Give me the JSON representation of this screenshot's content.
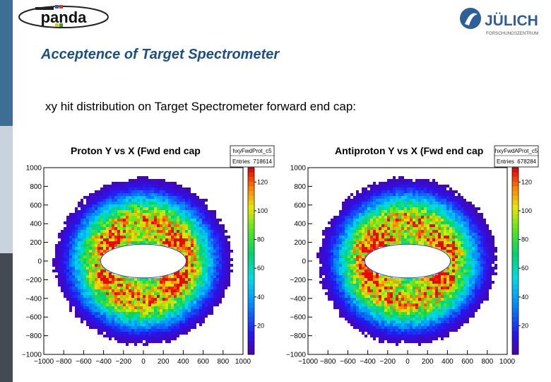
{
  "header": {
    "title": "Acceptence of Target Spectrometer",
    "subtitle": "xy hit distribution on Target Spectrometer forward end cap:",
    "logos": {
      "left": "panda",
      "right": "JÜLICH",
      "right_sub": "FORSCHUNGSZENTRUM"
    }
  },
  "colors": {
    "title": "#1d4f86",
    "sidebar_top": "#3f6e95",
    "sidebar_bottom": "#444a52"
  },
  "chart_data": [
    {
      "type": "heatmap",
      "title": "Proton Y vs X (Fwd end cap",
      "stat_name": "hxyFwdProt_c5",
      "entries_label": "Entries",
      "entries": "718614",
      "xlim": [
        -1000,
        1000
      ],
      "ylim": [
        -1000,
        1000
      ],
      "x_ticks": [
        "−1000",
        "−800",
        "−600",
        "−400",
        "−200",
        "0",
        "200",
        "400",
        "600",
        "800",
        "1000"
      ],
      "y_ticks": [
        "1000",
        "800",
        "600",
        "400",
        "200",
        "0",
        "−200",
        "−400",
        "−600",
        "−800",
        "−1000"
      ],
      "colorbar_ticks": [
        "120",
        "100",
        "80",
        "60",
        "40",
        "20"
      ],
      "z_range": [
        0,
        130
      ]
    },
    {
      "type": "heatmap",
      "title": "Antiproton Y vs X (Fwd end cap",
      "stat_name": "hxyFwdAProt_c5",
      "entries_label": "Entries",
      "entries": "678284",
      "xlim": [
        -1000,
        1000
      ],
      "ylim": [
        -1000,
        1000
      ],
      "x_ticks": [
        "−1000",
        "−800",
        "−600",
        "−400",
        "−200",
        "0",
        "200",
        "400",
        "600",
        "800",
        "1000"
      ],
      "y_ticks": [
        "1000",
        "800",
        "600",
        "400",
        "200",
        "0",
        "−200",
        "−400",
        "−600",
        "−800",
        "−1000"
      ],
      "colorbar_ticks": [
        "120",
        "100",
        "80",
        "60",
        "40",
        "20"
      ],
      "z_range": [
        0,
        130
      ]
    }
  ]
}
